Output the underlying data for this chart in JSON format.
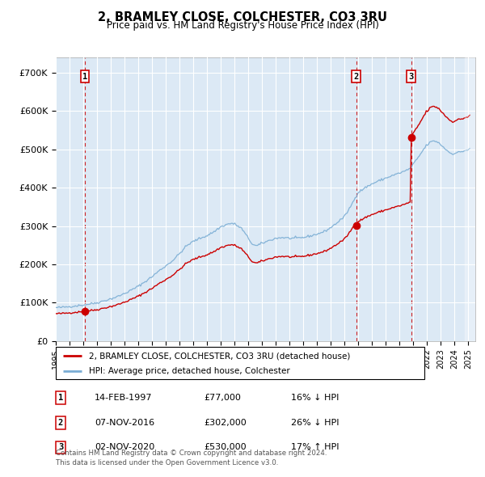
{
  "title": "2, BRAMLEY CLOSE, COLCHESTER, CO3 3RU",
  "subtitle": "Price paid vs. HM Land Registry's House Price Index (HPI)",
  "legend_line1": "2, BRAMLEY CLOSE, COLCHESTER, CO3 3RU (detached house)",
  "legend_line2": "HPI: Average price, detached house, Colchester",
  "sale_points": [
    {
      "label": "1",
      "date": "14-FEB-1997",
      "year": 1997.12,
      "price": 77000,
      "hpi_pct": "16% ↓ HPI"
    },
    {
      "label": "2",
      "date": "07-NOV-2016",
      "year": 2016.85,
      "price": 302000,
      "hpi_pct": "26% ↓ HPI"
    },
    {
      "label": "3",
      "date": "02-NOV-2020",
      "year": 2020.84,
      "price": 530000,
      "hpi_pct": "17% ↑ HPI"
    }
  ],
  "ylabel_ticks": [
    "£0",
    "£100K",
    "£200K",
    "£300K",
    "£400K",
    "£500K",
    "£600K",
    "£700K"
  ],
  "ytick_values": [
    0,
    100000,
    200000,
    300000,
    400000,
    500000,
    600000,
    700000
  ],
  "ylim": [
    0,
    740000
  ],
  "xlim_start": 1995.3,
  "xlim_end": 2025.5,
  "xtick_start": 1995,
  "xtick_end": 2025,
  "bg_color": "#dce9f5",
  "grid_color": "#ffffff",
  "red_line_color": "#cc0000",
  "blue_line_color": "#7aadd4",
  "dashed_vline_color": "#cc0000",
  "sale_years": [
    1997.12,
    2016.85,
    2020.84
  ],
  "sale_prices": [
    77000,
    302000,
    530000
  ],
  "footer": "Contains HM Land Registry data © Crown copyright and database right 2024.\nThis data is licensed under the Open Government Licence v3.0.",
  "sale_table": [
    {
      "num": "1",
      "date": "14-FEB-1997",
      "price": "£77,000",
      "hpi": "16% ↓ HPI"
    },
    {
      "num": "2",
      "date": "07-NOV-2016",
      "price": "£302,000",
      "hpi": "26% ↓ HPI"
    },
    {
      "num": "3",
      "date": "02-NOV-2020",
      "price": "£530,000",
      "hpi": "17% ↑ HPI"
    }
  ]
}
